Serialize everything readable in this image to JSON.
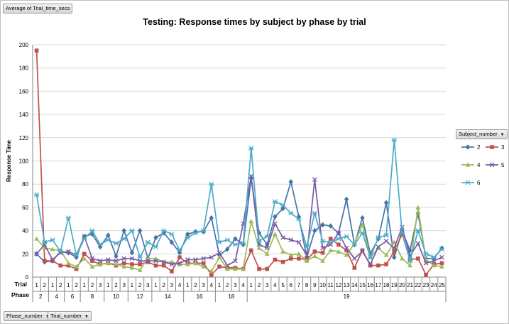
{
  "pivot": {
    "value_button": "Average of Trial_time_secs",
    "filter_phase": "Phase_number",
    "filter_trial": "Trial_number",
    "legend_button": "Subject_number"
  },
  "colors": {
    "2": "#4572a7",
    "3": "#c0504d",
    "4": "#9bbb59",
    "5": "#7b5aa6",
    "6": "#4bacc6"
  },
  "chart_data": {
    "type": "line",
    "title": "Testing: Response times by subject by phase by trial",
    "ylabel": "Response Time",
    "xlabel_rows": [
      "Trial",
      "Phase"
    ],
    "ylim": [
      0,
      200
    ],
    "yticks": [
      0,
      20,
      40,
      60,
      80,
      100,
      120,
      140,
      160,
      180,
      200
    ],
    "grid": true,
    "legend_position": "right",
    "phases": [
      {
        "phase": "2",
        "trials": [
          "1",
          "2"
        ]
      },
      {
        "phase": "4",
        "trials": [
          "1",
          "2"
        ]
      },
      {
        "phase": "6",
        "trials": [
          "1",
          "2"
        ]
      },
      {
        "phase": "8",
        "trials": [
          "1",
          "2",
          "3"
        ]
      },
      {
        "phase": "10",
        "trials": [
          "1",
          "2",
          "3"
        ]
      },
      {
        "phase": "12",
        "trials": [
          "1",
          "2",
          "3"
        ]
      },
      {
        "phase": "14",
        "trials": [
          "1",
          "2",
          "3",
          "4"
        ]
      },
      {
        "phase": "16",
        "trials": [
          "1",
          "2",
          "3",
          "4"
        ]
      },
      {
        "phase": "18",
        "trials": [
          "1",
          "2",
          "3",
          "4"
        ]
      },
      {
        "phase": "19",
        "trials": [
          "1",
          "2",
          "3",
          "4",
          "5",
          "6",
          "7",
          "8",
          "9",
          "10",
          "11",
          "12",
          "13",
          "14",
          "15",
          "16",
          "17",
          "18",
          "19",
          "20",
          "21",
          "22",
          "23",
          "24",
          "25"
        ]
      }
    ],
    "series": [
      {
        "name": "2",
        "marker": "diamond",
        "values": [
          20,
          13,
          14,
          22,
          21,
          17,
          35,
          37,
          26,
          36,
          18,
          40,
          21,
          40,
          16,
          34,
          38,
          30,
          21,
          37,
          39,
          39,
          51,
          19,
          24,
          33,
          28,
          85,
          38,
          28,
          52,
          59,
          82,
          52,
          17,
          40,
          45,
          44,
          38,
          67,
          28,
          51,
          20,
          33,
          64,
          17,
          40,
          23,
          55,
          16,
          16,
          25
        ]
      },
      {
        "name": "3",
        "marker": "square",
        "values": [
          195,
          14,
          14,
          10,
          10,
          7,
          20,
          14,
          11,
          12,
          10,
          12,
          11,
          11,
          13,
          10,
          10,
          5,
          17,
          12,
          12,
          12,
          2,
          9,
          8,
          8,
          7,
          23,
          7,
          7,
          15,
          13,
          16,
          16,
          15,
          22,
          21,
          33,
          28,
          23,
          8,
          23,
          10,
          10,
          11,
          22,
          37,
          15,
          16,
          2,
          11,
          12
        ]
      },
      {
        "name": "4",
        "marker": "triangle",
        "values": [
          33,
          25,
          24,
          23,
          12,
          9,
          16,
          9,
          11,
          12,
          11,
          9,
          8,
          6,
          16,
          16,
          13,
          13,
          11,
          11,
          12,
          9,
          5,
          17,
          7,
          7,
          7,
          48,
          25,
          20,
          37,
          22,
          19,
          20,
          14,
          18,
          14,
          23,
          22,
          19,
          29,
          45,
          17,
          25,
          19,
          30,
          16,
          10,
          60,
          15,
          10,
          9
        ]
      },
      {
        "name": "5",
        "marker": "x",
        "values": [
          20,
          28,
          15,
          21,
          22,
          19,
          35,
          16,
          14,
          15,
          14,
          16,
          16,
          14,
          14,
          14,
          13,
          11,
          12,
          15,
          15,
          16,
          17,
          21,
          10,
          14,
          46,
          87,
          28,
          25,
          46,
          34,
          32,
          30,
          19,
          84,
          25,
          28,
          38,
          25,
          16,
          22,
          11,
          26,
          31,
          25,
          43,
          18,
          29,
          12,
          14,
          17
        ]
      },
      {
        "name": "6",
        "marker": "star",
        "values": [
          71,
          30,
          32,
          22,
          51,
          19,
          33,
          40,
          28,
          32,
          29,
          33,
          40,
          17,
          30,
          26,
          40,
          37,
          23,
          34,
          38,
          40,
          80,
          30,
          32,
          28,
          29,
          111,
          31,
          35,
          65,
          62,
          55,
          50,
          26,
          55,
          31,
          30,
          33,
          35,
          28,
          38,
          17,
          34,
          36,
          118,
          38,
          14,
          40,
          20,
          17,
          24
        ]
      }
    ]
  }
}
